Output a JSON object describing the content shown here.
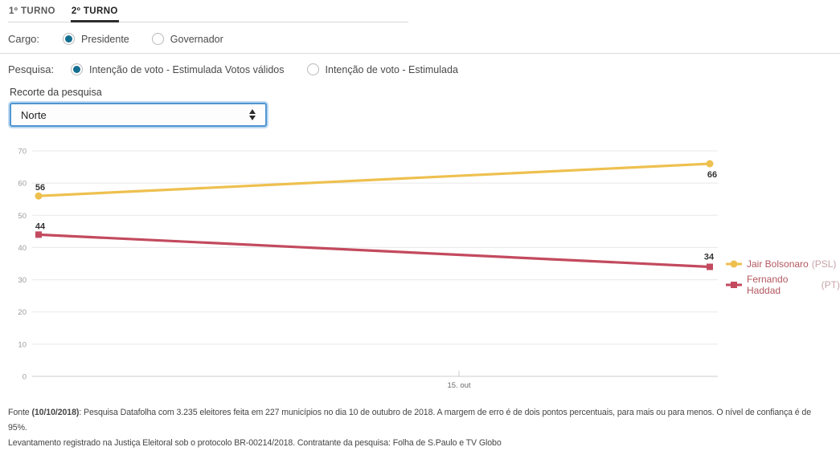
{
  "tabs": {
    "first_label": "1º TURNO",
    "second_label": "2º TURNO",
    "active": "2º TURNO"
  },
  "cargo": {
    "label": "Cargo:",
    "options": [
      {
        "label": "Presidente",
        "selected": true
      },
      {
        "label": "Governador",
        "selected": false
      }
    ]
  },
  "pesquisa": {
    "label": "Pesquisa:",
    "options": [
      {
        "label": "Intenção de voto - Estimulada Votos válidos",
        "selected": true
      },
      {
        "label": "Intenção de voto - Estimulada",
        "selected": false
      }
    ]
  },
  "recorte": {
    "label": "Recorte da pesquisa",
    "selected_value": "Norte"
  },
  "chart_data": {
    "type": "line",
    "title": "",
    "xlabel": "",
    "ylabel": "",
    "ylim": [
      0,
      70
    ],
    "yticks": [
      0,
      10,
      20,
      30,
      40,
      50,
      60,
      70
    ],
    "grid": true,
    "legend_position": "right",
    "x_tick_label": "15. out",
    "series": [
      {
        "name": "Jair Bolsonaro",
        "party_label": "(PSL)",
        "color": "#eec04f",
        "marker": "circle",
        "values": [
          56,
          66
        ]
      },
      {
        "name": "Fernando Haddad",
        "party_label": "(PT)",
        "color": "#c34a5e",
        "marker": "square",
        "values": [
          44,
          34
        ]
      }
    ]
  },
  "footer": {
    "prefix": "Fonte ",
    "date": "(10/10/2018)",
    "line1_rest": ": Pesquisa Datafolha com 3.235 eleitores feita em 227 municípios no dia 10 de outubro de 2018. A margem de erro é de dois pontos percentuais, para mais ou para menos. O nível de confiança é de 95%.",
    "line2": "Levantamento registrado na Justiça Eleitoral sob o protocolo BR-00214/2018. Contratante da pesquisa: Folha de S.Paulo e TV Globo"
  }
}
